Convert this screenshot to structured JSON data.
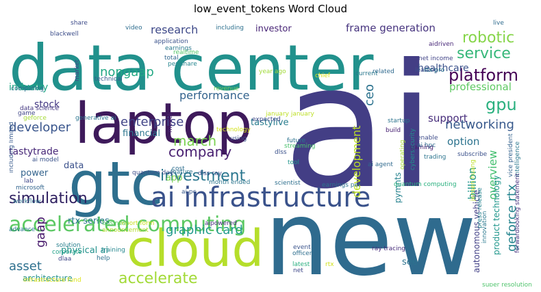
{
  "chart_data": {
    "type": "wordcloud",
    "title": "low_event_tokens Word Cloud",
    "words": [
      {
        "text": "ai",
        "color": "#433e85"
      },
      {
        "text": "new",
        "color": "#2f6b8e"
      },
      {
        "text": "data center",
        "color": "#21918c"
      },
      {
        "text": "laptop",
        "color": "#3e1a5b"
      },
      {
        "text": "gtc",
        "color": "#2e6f8e"
      },
      {
        "text": "cloud",
        "color": "#b5de2b"
      },
      {
        "text": "ai infrastructure",
        "color": "#3a528b"
      },
      {
        "text": "accelerated computing",
        "color": "#5cc863"
      },
      {
        "text": "simulation",
        "color": "#2d1e5f"
      },
      {
        "text": "graphic card",
        "color": "#1f9a8a"
      },
      {
        "text": "accelerate",
        "color": "#a2da37"
      },
      {
        "text": "platform",
        "color": "#440154"
      },
      {
        "text": "service",
        "color": "#35b779"
      },
      {
        "text": "robotic",
        "color": "#86d549"
      },
      {
        "text": "investment",
        "color": "#2a768e"
      },
      {
        "text": "company",
        "color": "#481f70"
      },
      {
        "text": "march",
        "color": "#7ad151"
      },
      {
        "text": "developer",
        "color": "#39558c"
      },
      {
        "text": "enterprise",
        "color": "#414487"
      },
      {
        "text": "performance",
        "color": "#33638d"
      },
      {
        "text": "nongaap",
        "color": "#22a884"
      },
      {
        "text": "research",
        "color": "#3e4989"
      },
      {
        "text": "frame generation",
        "color": "#46337e"
      },
      {
        "text": "gpu",
        "color": "#2ab07f"
      },
      {
        "text": "networking",
        "color": "#38598c"
      },
      {
        "text": "ceo",
        "color": "#2c728e"
      },
      {
        "text": "development",
        "color": "#bddf26"
      },
      {
        "text": "overview",
        "color": "#44bf70"
      },
      {
        "text": "geforce rtx",
        "color": "#25848e"
      },
      {
        "text": "billion",
        "color": "#1f948c"
      },
      {
        "text": "option",
        "color": "#2c738e"
      },
      {
        "text": "support",
        "color": "#472d7b"
      },
      {
        "text": "professional",
        "color": "#5ec962"
      },
      {
        "text": "healthcare",
        "color": "#3b528b"
      },
      {
        "text": "asset",
        "color": "#2d708e"
      },
      {
        "text": "gaap",
        "color": "#481a6c"
      },
      {
        "text": "stock",
        "color": "#443983"
      },
      {
        "text": "industry",
        "color": "#21a685"
      },
      {
        "text": "tastylive",
        "color": "#287c8e"
      },
      {
        "text": "tastytrade",
        "color": "#482878"
      },
      {
        "text": "financial",
        "color": "#2b758e"
      },
      {
        "text": "power",
        "color": "#33638d"
      },
      {
        "text": "data",
        "color": "#3b518b"
      },
      {
        "text": "app",
        "color": "#7ad151"
      },
      {
        "text": "rtx series",
        "color": "#2a788e"
      },
      {
        "text": "physical ai",
        "color": "#21918c"
      },
      {
        "text": "artificial intelligence",
        "color": "#2db27d"
      },
      {
        "text": "ai accelerated",
        "color": "#3b528b"
      },
      {
        "text": "agentic ai",
        "color": "#443983"
      },
      {
        "text": "see",
        "color": "#2c728e"
      },
      {
        "text": "product technology",
        "color": "#1f968b"
      },
      {
        "text": "autonomous vehicle",
        "color": "#424086"
      },
      {
        "text": "pymnts",
        "color": "#26828e"
      },
      {
        "text": "investor",
        "color": "#482576"
      },
      {
        "text": "architecture",
        "color": "#21918c"
      },
      {
        "text": "ray tracing",
        "color": "#472c7a"
      },
      {
        "text": "blackwell",
        "color": "#3d4e8a"
      },
      {
        "text": "share",
        "color": "#3e4c8a"
      },
      {
        "text": "video",
        "color": "#2e6d8e"
      },
      {
        "text": "including",
        "color": "#2d708e"
      },
      {
        "text": "application",
        "color": "#3b528b"
      },
      {
        "text": "earnings",
        "color": "#2a788e"
      },
      {
        "text": "realtime",
        "color": "#54c568"
      },
      {
        "text": "total",
        "color": "#31668e"
      },
      {
        "text": "per share",
        "color": "#25858e"
      },
      {
        "text": "market",
        "color": "#414487"
      },
      {
        "text": "technical",
        "color": "#365c8d"
      },
      {
        "text": "computing",
        "color": "#2c718e"
      },
      {
        "text": "data science",
        "color": "#453882"
      },
      {
        "text": "including limited",
        "color": "#375a8c"
      },
      {
        "text": "generative ai",
        "color": "#2b748e"
      },
      {
        "text": "game",
        "color": "#404688"
      },
      {
        "text": "geforce",
        "color": "#a5db36"
      },
      {
        "text": "ai model",
        "color": "#3a538b"
      },
      {
        "text": "model",
        "color": "#482374"
      },
      {
        "text": "lab",
        "color": "#3f4889"
      },
      {
        "text": "microsoft",
        "color": "#32658e"
      },
      {
        "text": "workflow",
        "color": "#2d718e"
      },
      {
        "text": "advance",
        "color": "#2a778e"
      },
      {
        "text": "solution",
        "color": "#277f8e"
      },
      {
        "text": "corporate",
        "color": "#1fa187"
      },
      {
        "text": "dlaa",
        "color": "#3f4788"
      },
      {
        "text": "training",
        "color": "#24868e"
      },
      {
        "text": "help",
        "color": "#2d718e"
      },
      {
        "text": "infrastructure fund",
        "color": "#dde318"
      },
      {
        "text": "report form",
        "color": "#c8e020"
      },
      {
        "text": "business",
        "color": "#5ec962"
      },
      {
        "text": "announcement",
        "color": "#b2dd2d"
      },
      {
        "text": "aipowered",
        "color": "#472f7d"
      },
      {
        "text": "event",
        "color": "#3a538b"
      },
      {
        "text": "officer",
        "color": "#2e6e8e"
      },
      {
        "text": "latest",
        "color": "#29af7f"
      },
      {
        "text": "net",
        "color": "#3f4889"
      },
      {
        "text": "rtx",
        "color": "#d0e11c"
      },
      {
        "text": "year ago",
        "color": "#a0da39"
      },
      {
        "text": "revenue",
        "color": "#6ccd5a"
      },
      {
        "text": "chief",
        "color": "#d8e219"
      },
      {
        "text": "january january",
        "color": "#bddf26"
      },
      {
        "text": "technology",
        "color": "#d2e21b"
      },
      {
        "text": "expected",
        "color": "#3e4989"
      },
      {
        "text": "using",
        "color": "#3b528b"
      },
      {
        "text": "cost",
        "color": "#2e6e8e"
      },
      {
        "text": "feature",
        "color": "#2c738e"
      },
      {
        "text": "dlss ray",
        "color": "#3d4d8a"
      },
      {
        "text": "month ended",
        "color": "#2b758e"
      },
      {
        "text": "quantum day",
        "color": "#3d4e8a"
      },
      {
        "text": "ai pc",
        "color": "#38598c"
      },
      {
        "text": "future",
        "color": "#2c738e"
      },
      {
        "text": "streaming",
        "color": "#4ac16d"
      },
      {
        "text": "dlss",
        "color": "#3b528b"
      },
      {
        "text": "tool",
        "color": "#1f958b"
      },
      {
        "text": "scientist",
        "color": "#2e6f8e"
      },
      {
        "text": "earnings per",
        "color": "#2c738e"
      },
      {
        "text": "quantum computing",
        "color": "#2ab07f"
      },
      {
        "text": "ai agent",
        "color": "#306a8e"
      },
      {
        "text": "operating",
        "color": "#a8db34"
      },
      {
        "text": "cybersecurity",
        "color": "#21918c"
      },
      {
        "text": "related",
        "color": "#306a8e"
      },
      {
        "text": "current",
        "color": "#2a788e"
      },
      {
        "text": "startup",
        "color": "#2c738e"
      },
      {
        "text": "build",
        "color": "#482173"
      },
      {
        "text": "enable",
        "color": "#3e4c8a"
      },
      {
        "text": "gaming",
        "color": "#481c6e"
      },
      {
        "text": "leading",
        "color": "#3c4f8a"
      },
      {
        "text": "rtx pro",
        "color": "#2a768e"
      },
      {
        "text": "ai hpc",
        "color": "#306a8e"
      },
      {
        "text": "trading",
        "color": "#2b748e"
      },
      {
        "text": "subscribe",
        "color": "#3b518b"
      },
      {
        "text": "jensen huang",
        "color": "#bddf26"
      },
      {
        "text": "press release",
        "color": "#26828e"
      },
      {
        "text": "innovation",
        "color": "#2a788e"
      },
      {
        "text": "super resolution",
        "color": "#4ec36b"
      },
      {
        "text": "vice president",
        "color": "#33628d"
      },
      {
        "text": "intelligence",
        "color": "#2a788e"
      },
      {
        "text": "forwardlooking statement",
        "color": "#46307e"
      },
      {
        "text": "net income",
        "color": "#414487"
      },
      {
        "text": "aidriven",
        "color": "#482878"
      },
      {
        "text": "live",
        "color": "#2f6c8e"
      }
    ]
  }
}
